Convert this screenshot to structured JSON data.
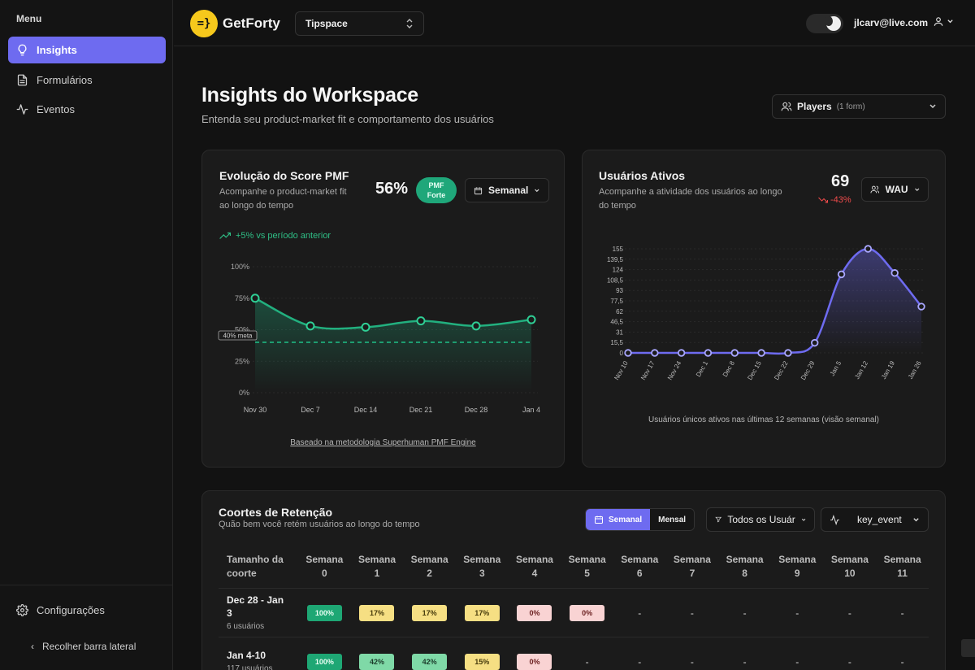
{
  "sidebar": {
    "menu_title": "Menu",
    "items": [
      {
        "label": "Insights",
        "icon": "lightbulb-icon",
        "active": true
      },
      {
        "label": "Formulários",
        "icon": "document-icon",
        "active": false
      },
      {
        "label": "Eventos",
        "icon": "activity-icon",
        "active": false
      }
    ],
    "settings_label": "Configurações",
    "collapse_label": "Recolher barra lateral"
  },
  "topbar": {
    "logo_mark": "=}",
    "brand": "GetForty",
    "workspace": "Tipspace",
    "user_email": "jlcarv@live.com"
  },
  "header": {
    "title": "Insights do Workspace",
    "subtitle": "Entenda seu product-market fit e comportamento dos usuários",
    "filter_label": "Players",
    "filter_count": "(1 form)"
  },
  "pmf_card": {
    "title": "Evolução do Score PMF",
    "subtitle_line1": "Acompanhe o product-market fit",
    "subtitle_line2": "ao longo do tempo",
    "score": "56%",
    "badge_line1": "PMF",
    "badge_line2": "Forte",
    "period_label": "Semanal",
    "trend_text": "+5% vs período anterior",
    "meta_label": "40% meta",
    "footnote": "Baseado na metodologia Superhuman PMF Engine"
  },
  "active_card": {
    "title": "Usuários Ativos",
    "subtitle_line1": "Acompanhe a atividade dos usuários ao longo",
    "subtitle_line2": "do tempo",
    "value": "69",
    "change": "-43%",
    "metric_label": "WAU",
    "caption": "Usuários únicos ativos nas últimas 12 semanas (visão semanal)"
  },
  "chart_data": [
    {
      "type": "area",
      "title": "Evolução do Score PMF",
      "categories": [
        "Nov 30",
        "Dec 7",
        "Dec 14",
        "Dec 21",
        "Dec 28",
        "Jan 4"
      ],
      "values": [
        75,
        53,
        52,
        57,
        53,
        58
      ],
      "y_ticks": [
        "0%",
        "25%",
        "50%",
        "75%",
        "100%"
      ],
      "ylim": [
        0,
        100
      ],
      "reference_line": 40,
      "grid": true
    },
    {
      "type": "area",
      "title": "Usuários Ativos",
      "categories": [
        "Nov 10",
        "Nov 17",
        "Nov 24",
        "Dec 1",
        "Dec 8",
        "Dec 15",
        "Dec 22",
        "Dec 29",
        "Jan 5",
        "Jan 12",
        "Jan 19",
        "Jan 26"
      ],
      "values": [
        0,
        0,
        0,
        0,
        0,
        0,
        0,
        15,
        117,
        155,
        119,
        69
      ],
      "y_ticks": [
        "0",
        "15,5",
        "31",
        "46,5",
        "62",
        "77,5",
        "93",
        "108,5",
        "124",
        "139,5",
        "155"
      ],
      "ylim": [
        0,
        155
      ],
      "grid": true
    }
  ],
  "cohort": {
    "title": "Coortes de Retenção",
    "subtitle": "Quão bem você retém usuários ao longo do tempo",
    "toggle_weekly": "Semanal",
    "toggle_monthly": "Mensal",
    "filter_users": "Todos os Usuár",
    "event_label": "key_event",
    "header_first_line1": "Tamanho da",
    "header_first_line2": "coorte",
    "week_word": "Semana",
    "weeks": [
      "0",
      "1",
      "2",
      "3",
      "4",
      "5",
      "6",
      "7",
      "8",
      "9",
      "10",
      "11"
    ],
    "rows": [
      {
        "name_line1": "Dec 28 - Jan",
        "name_line2": "3",
        "users": "6 usuários",
        "cells": [
          "100%",
          "17%",
          "17%",
          "17%",
          "0%",
          "0%",
          "-",
          "-",
          "-",
          "-",
          "-",
          "-"
        ],
        "styles": [
          "green",
          "yellow",
          "yellow",
          "yellow",
          "pink",
          "pink",
          "dash",
          "dash",
          "dash",
          "dash",
          "dash",
          "dash"
        ]
      },
      {
        "name_line1": "Jan 4-10",
        "name_line2": "",
        "users": "117 usuários",
        "cells": [
          "100%",
          "42%",
          "42%",
          "15%",
          "0%",
          "-",
          "-",
          "-",
          "-",
          "-",
          "-",
          "-"
        ],
        "styles": [
          "green",
          "lgreen",
          "lgreen",
          "yellow",
          "pink",
          "dash",
          "dash",
          "dash",
          "dash",
          "dash",
          "dash",
          "dash"
        ]
      }
    ]
  }
}
